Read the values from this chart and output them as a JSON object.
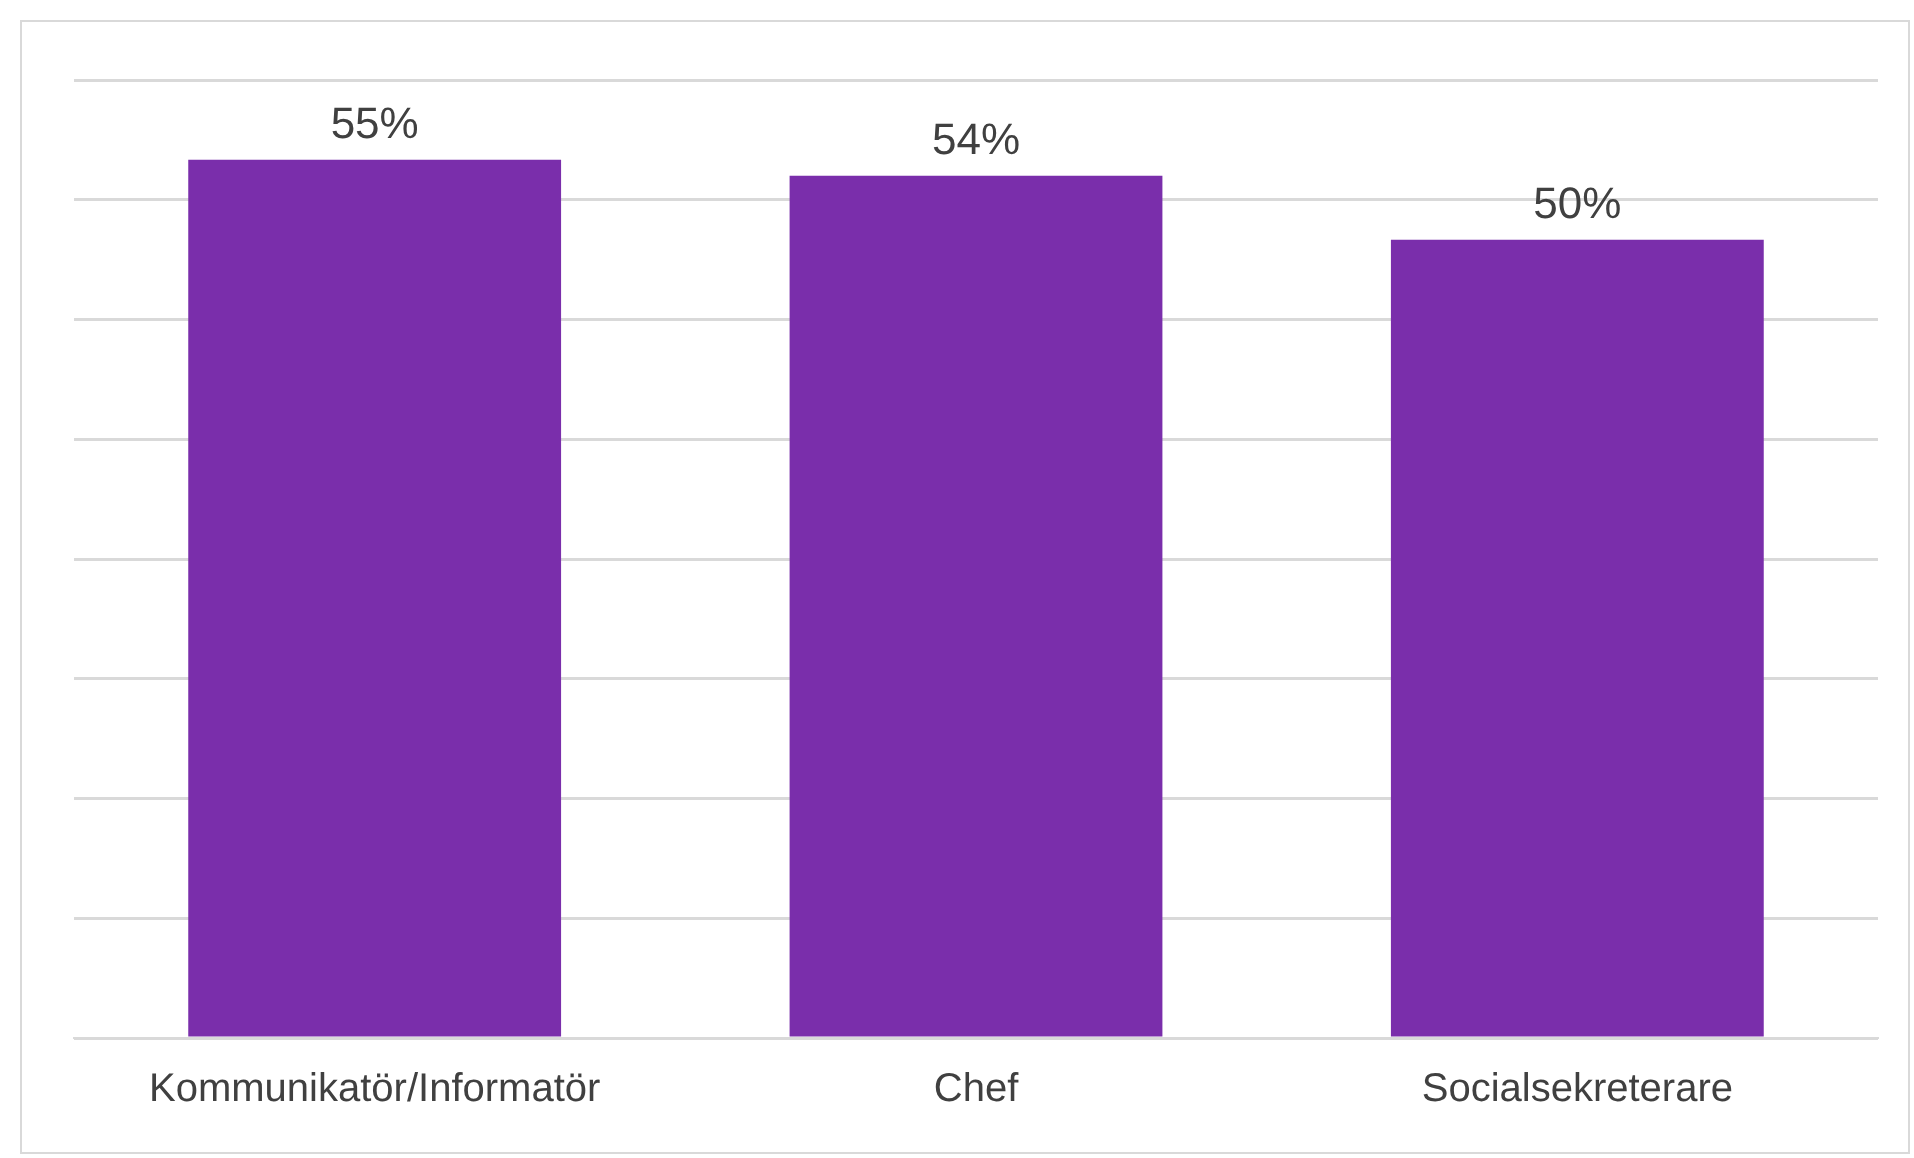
{
  "chart_data": {
    "type": "bar",
    "categories": [
      "Kommunikatör/Informatör",
      "Chef",
      "Socialsekreterare"
    ],
    "values": [
      55,
      54,
      50
    ],
    "color": "#7a2eab",
    "value_labels": [
      "55%",
      "54%",
      "50%"
    ],
    "tick_labels": "x",
    "grid": "y",
    "legend": false
  }
}
